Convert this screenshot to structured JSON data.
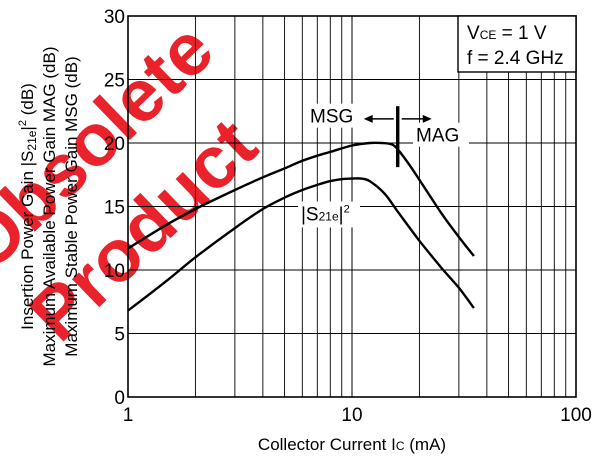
{
  "chart_data": {
    "type": "line",
    "x_scale": "log",
    "xlim": [
      1,
      100
    ],
    "ylim": [
      0,
      30
    ],
    "x_ticks": [
      "1",
      "10",
      "100"
    ],
    "y_ticks": [
      "0",
      "5",
      "10",
      "15",
      "20",
      "25",
      "30"
    ],
    "grid": true,
    "xlabel": {
      "main": "Collector Current  I",
      "sub": "C",
      "unit": " (mA)"
    },
    "ylabel_lines": [
      {
        "pre": "Insertion Power Gain  |S",
        "sub": "21e",
        "mid": "|",
        "sup": "2",
        "post": " (dB)"
      },
      {
        "pre": "Maximum Available Power Gain  MAG (dB)",
        "sub": "",
        "mid": "",
        "sup": "",
        "post": ""
      },
      {
        "pre": "Maximum Stable Power Gain  MSG (dB)",
        "sub": "",
        "mid": "",
        "sup": "",
        "post": ""
      }
    ],
    "conditions": {
      "vce": {
        "pre": "V",
        "sub": "CE",
        "post": " = 1 V"
      },
      "freq": "f = 2.4 GHz"
    },
    "series": [
      {
        "label": "MSG / MAG",
        "x": [
          1,
          1.5,
          2,
          3,
          4,
          5,
          6,
          7,
          8,
          10,
          12,
          13.5,
          15,
          16,
          18,
          20,
          25,
          30,
          35
        ],
        "values": [
          11.7,
          13.6,
          14.8,
          16.3,
          17.3,
          18.0,
          18.6,
          19.0,
          19.3,
          19.8,
          20.0,
          20.0,
          19.9,
          19.5,
          18.3,
          17.1,
          14.5,
          12.6,
          11.1
        ]
      },
      {
        "label": "|S21e|2",
        "x": [
          1,
          1.5,
          2,
          3,
          4,
          5,
          6,
          7,
          8,
          9,
          10,
          11,
          12,
          14,
          16,
          20,
          25,
          30,
          35
        ],
        "values": [
          6.8,
          9.2,
          11.0,
          13.3,
          14.8,
          15.7,
          16.3,
          16.7,
          17.0,
          17.15,
          17.2,
          17.2,
          17.0,
          16.0,
          14.6,
          12.3,
          10.2,
          8.6,
          7.0
        ]
      }
    ],
    "annotations": {
      "msg": "MSG",
      "mag": "MAG",
      "s21": {
        "pre": "|S",
        "sub": "21e",
        "mid": "|",
        "sup": "2"
      },
      "divider_x": 16
    }
  },
  "watermark": {
    "text": "Obsolete Product",
    "color": "#e8101a"
  }
}
